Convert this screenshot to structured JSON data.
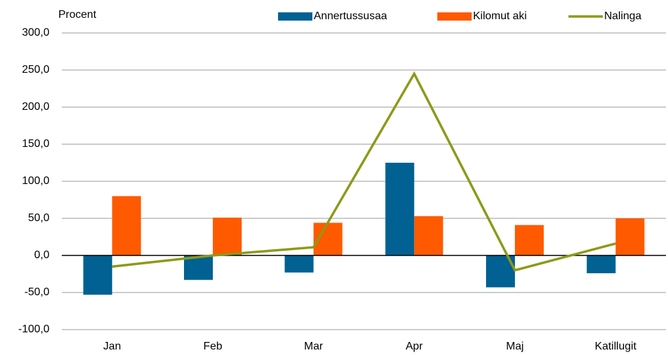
{
  "chart_data": {
    "type": "bar+line",
    "y_axis_label": "Procent",
    "categories": [
      "Jan",
      "Feb",
      "Mar",
      "Apr",
      "Maj",
      "Katillugit"
    ],
    "series": [
      {
        "name": "Annertussusaa",
        "type": "bar",
        "color": "#006192",
        "values": [
          -53,
          -33,
          -23,
          125,
          -43,
          -24
        ]
      },
      {
        "name": "Kilomut aki",
        "type": "bar",
        "color": "#ff5a00",
        "values": [
          80,
          51,
          44,
          53,
          41,
          50
        ]
      },
      {
        "name": "Nalinga",
        "type": "line",
        "color": "#8c9a17",
        "values": [
          -15,
          0,
          11,
          245,
          -20,
          16
        ]
      }
    ],
    "ylim": [
      -100,
      300
    ],
    "yticks": [
      {
        "value": -100,
        "label": "-100,0"
      },
      {
        "value": -50,
        "label": "-50,0"
      },
      {
        "value": 0,
        "label": "0,0"
      },
      {
        "value": 50,
        "label": "50,0"
      },
      {
        "value": 100,
        "label": "100,0"
      },
      {
        "value": 150,
        "label": "150,0"
      },
      {
        "value": 200,
        "label": "200,0"
      },
      {
        "value": 250,
        "label": "250,0"
      },
      {
        "value": 300,
        "label": "300,0"
      }
    ],
    "grid": true,
    "legend": "top"
  }
}
